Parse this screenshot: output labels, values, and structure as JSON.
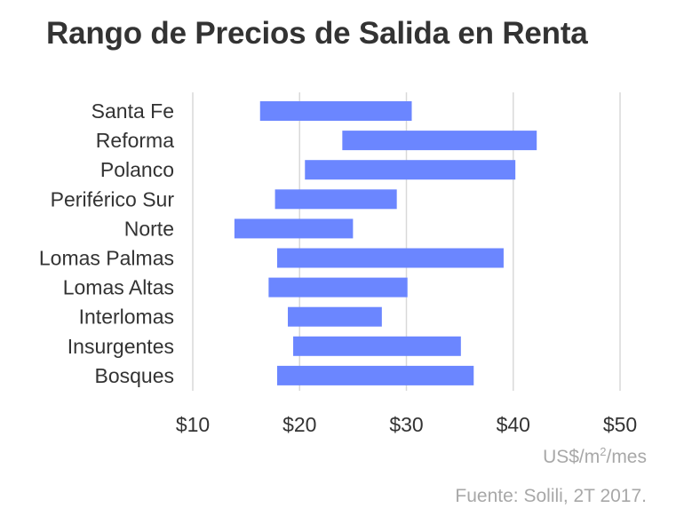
{
  "chart_data": {
    "type": "bar",
    "orientation": "horizontal-range",
    "title": "Rango de Precios de Salida en Renta",
    "categories": [
      "Santa Fe",
      "Reforma",
      "Polanco",
      "Periférico Sur",
      "Norte",
      "Lomas Palmas",
      "Lomas Altas",
      "Interlomas",
      "Insurgentes",
      "Bosques"
    ],
    "ranges": [
      [
        16.3,
        30.5
      ],
      [
        24.0,
        42.2
      ],
      [
        20.5,
        40.2
      ],
      [
        17.7,
        29.1
      ],
      [
        13.9,
        25.0
      ],
      [
        17.9,
        39.1
      ],
      [
        17.1,
        30.1
      ],
      [
        18.9,
        27.7
      ],
      [
        19.4,
        35.1
      ],
      [
        17.9,
        36.3
      ]
    ],
    "xlim": [
      10,
      50
    ],
    "xticks": [
      10,
      20,
      30,
      40,
      50
    ],
    "xtick_labels": [
      "$10",
      "$20",
      "$30",
      "$40",
      "$50"
    ],
    "unit_prefix": "US$/m",
    "unit_sup": "2",
    "unit_suffix": "/mes",
    "source": "Fuente: Solili, 2T 2017.",
    "grid": true,
    "bar_color": "#6b86ff",
    "grid_color": "#d9d9d9"
  }
}
